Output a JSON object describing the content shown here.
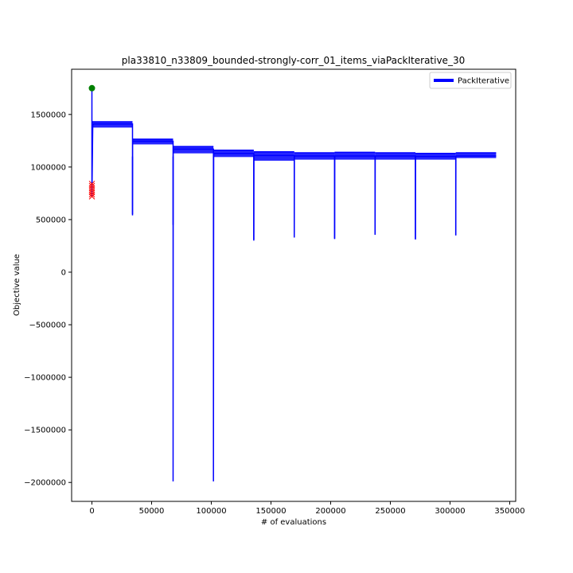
{
  "chart_data": {
    "type": "line",
    "title": "pla33810_n33809_bounded-strongly-corr_01_items_viaPackIterative_30",
    "xlabel": "# of evaluations",
    "ylabel": "Objective value",
    "xlim": [
      -17000,
      355000
    ],
    "ylim": [
      -2180000,
      1930000
    ],
    "x_ticks": [
      0,
      50000,
      100000,
      150000,
      200000,
      250000,
      300000,
      350000
    ],
    "x_tick_labels": [
      "0",
      "50000",
      "100000",
      "150000",
      "200000",
      "250000",
      "300000",
      "350000"
    ],
    "y_ticks": [
      -2000000,
      -1500000,
      -1000000,
      -500000,
      0,
      500000,
      1000000,
      1500000
    ],
    "y_tick_labels": [
      "−2000000",
      "−1500000",
      "−1000000",
      "−500000",
      "0",
      "500000",
      "1000000",
      "1500000"
    ],
    "grid": false,
    "legend_position": "top-right",
    "series": [
      {
        "name": "PackIterative",
        "color": "#0000ff",
        "x": [
          0,
          0,
          700,
          1500,
          34000,
          34000,
          34100,
          34200,
          68000,
          68000,
          68100,
          68200,
          101800,
          101800,
          102000,
          102100,
          135600,
          135600,
          135700,
          135900,
          169500,
          169500,
          169600,
          169800,
          203300,
          203300,
          203400,
          203600,
          237200,
          237200,
          237300,
          237500,
          271000,
          271000,
          271100,
          271300,
          304800,
          304800,
          304900,
          305100,
          338600
        ],
        "y": [
          1750000,
          720000,
          1400000,
          1410000,
          1410000,
          550000,
          1240000,
          1245000,
          1245000,
          -1990000,
          1150000,
          1170000,
          1170000,
          -1990000,
          1120000,
          1130000,
          1130000,
          310000,
          1100000,
          1110000,
          1110000,
          330000,
          1100000,
          1105000,
          1105000,
          320000,
          1100000,
          1105000,
          1105000,
          360000,
          1100000,
          1105000,
          1105000,
          320000,
          1100000,
          1100000,
          1100000,
          350000,
          1100000,
          1105000,
          1105000
        ]
      }
    ],
    "bands": [
      {
        "x0": 0,
        "x1": 34000,
        "y0": 1375000,
        "y1": 1430000
      },
      {
        "x0": 34000,
        "x1": 68000,
        "y0": 1215000,
        "y1": 1265000
      },
      {
        "x0": 68000,
        "x1": 101800,
        "y0": 1130000,
        "y1": 1195000
      },
      {
        "x0": 101800,
        "x1": 135600,
        "y0": 1095000,
        "y1": 1160000
      },
      {
        "x0": 135600,
        "x1": 169500,
        "y0": 1060000,
        "y1": 1145000
      },
      {
        "x0": 169500,
        "x1": 203300,
        "y0": 1070000,
        "y1": 1135000
      },
      {
        "x0": 203300,
        "x1": 237200,
        "y0": 1070000,
        "y1": 1140000
      },
      {
        "x0": 237200,
        "x1": 271000,
        "y0": 1070000,
        "y1": 1135000
      },
      {
        "x0": 271000,
        "x1": 304800,
        "y0": 1070000,
        "y1": 1130000
      },
      {
        "x0": 304800,
        "x1": 338600,
        "y0": 1085000,
        "y1": 1135000
      }
    ],
    "drops": [
      {
        "x": 68000,
        "y": 450000
      },
      {
        "x": 34000,
        "y": 540000
      },
      {
        "x": 135600,
        "y": 300000
      },
      {
        "x": 169500,
        "y": 330000
      },
      {
        "x": 203300,
        "y": 315000
      },
      {
        "x": 237200,
        "y": 355000
      },
      {
        "x": 271000,
        "y": 310000
      },
      {
        "x": 304800,
        "y": 350000
      }
    ],
    "best_marker": {
      "x": 0,
      "y": 1750000,
      "color": "#008000"
    },
    "worst_markers": {
      "x": 0,
      "y": [
        720000,
        740000,
        760000,
        780000,
        800000,
        820000,
        840000
      ],
      "color": "#ff0000"
    }
  }
}
